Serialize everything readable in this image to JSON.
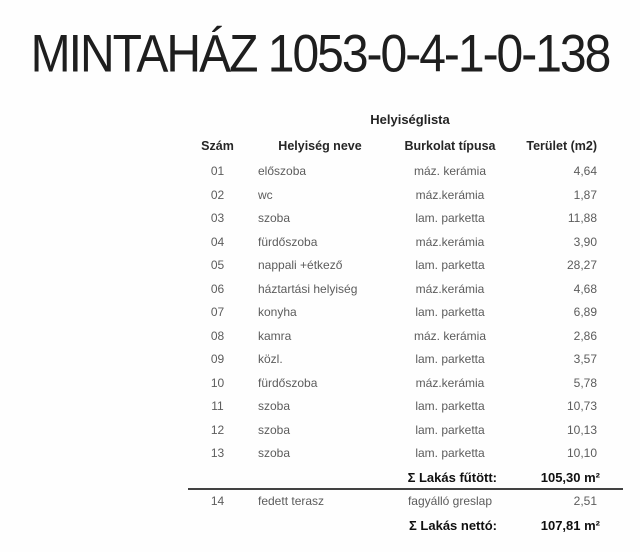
{
  "page_title": "MINTAHÁZ 1053-0-4-1-0-138",
  "room_list": {
    "caption": "Helyiséglista",
    "columns": {
      "num": "Szám",
      "name": "Helyiség neve",
      "floor": "Burkolat típusa",
      "area": "Terület (m2)"
    },
    "rows": [
      {
        "num": "01",
        "name": "előszoba",
        "floor": "máz. kerámia",
        "area": "4,64"
      },
      {
        "num": "02",
        "name": "wc",
        "floor": "máz.kerámia",
        "area": "1,87"
      },
      {
        "num": "03",
        "name": "szoba",
        "floor": "lam. parketta",
        "area": "11,88"
      },
      {
        "num": "04",
        "name": "fürdőszoba",
        "floor": "máz.kerámia",
        "area": "3,90"
      },
      {
        "num": "05",
        "name": "nappali +étkező",
        "floor": "lam. parketta",
        "area": "28,27"
      },
      {
        "num": "06",
        "name": "háztartási helyiség",
        "floor": "máz.kerámia",
        "area": "4,68"
      },
      {
        "num": "07",
        "name": "konyha",
        "floor": "lam. parketta",
        "area": "6,89"
      },
      {
        "num": "08",
        "name": "kamra",
        "floor": "máz. kerámia",
        "area": "2,86"
      },
      {
        "num": "09",
        "name": "közl.",
        "floor": "lam. parketta",
        "area": "3,57"
      },
      {
        "num": "10",
        "name": "fürdőszoba",
        "floor": "máz.kerámia",
        "area": "5,78"
      },
      {
        "num": "11",
        "name": "szoba",
        "floor": "lam. parketta",
        "area": "10,73"
      },
      {
        "num": "12",
        "name": "szoba",
        "floor": "lam. parketta",
        "area": "10,13"
      },
      {
        "num": "13",
        "name": "szoba",
        "floor": "lam. parketta",
        "area": "10,10"
      }
    ],
    "summary_heated": {
      "label": "Σ Lakás fűtött:",
      "value": "105,30 m²"
    },
    "outdoor_row": {
      "num": "14",
      "name": "fedett terasz",
      "floor": "fagyálló greslap",
      "area": "2,51"
    },
    "summary_net": {
      "label": "Σ Lakás nettó:",
      "value": "107,81 m²"
    }
  }
}
